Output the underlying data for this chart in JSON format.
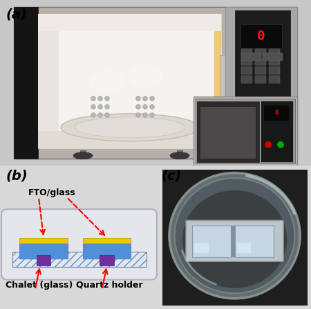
{
  "fig_width": 4.5,
  "fig_height": 4.48,
  "dpi": 100,
  "bg_color": "#d8d8d8",
  "label_a": "(a)",
  "label_b": "(b)",
  "label_c": "(c)",
  "label_fontsize": 13,
  "label_fontweight": "bold",
  "label_fontstyle": "italic",
  "text_fto": "FTO/glass",
  "text_chalet": "Chalet (glass)",
  "text_quartz": "Quartz holder",
  "annotation_fontsize": 8,
  "annotation_fontweight": "bold",
  "arrow_color": "red",
  "fto_glass_color": "#f0c800",
  "blue_layer_color": "#5090d8",
  "small_purple": "#7030a0",
  "panel_a_outer_bg": "#c8c8c8",
  "oven_body_color": "#b8b0a8",
  "oven_interior_color": "#f5f3f0",
  "oven_door_black": "#181818",
  "oven_ctrl_color": "#1c1c1c",
  "oven_metal_frame": "#909090",
  "inner_wall_color": "#f0eeeb",
  "turntable_color": "#ddd8d0",
  "bottom_floor_color": "#e8e5e0",
  "light_warm": "#f0c878",
  "inset_bg": "#888078",
  "panel_b_bg": "#ffffff",
  "holder_box_bg": "#e8e8ec",
  "holder_box_border": "#b0b0b8",
  "quartz_hatch_bg": "#dce8f8",
  "quartz_hatch_border": "#7888a8",
  "panel_c_bg": "#303030"
}
